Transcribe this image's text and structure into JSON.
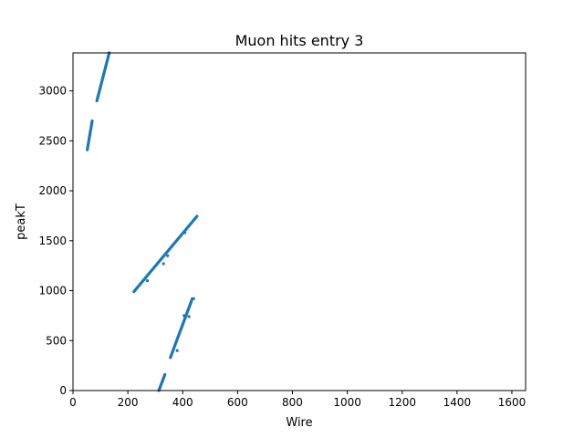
{
  "figure": {
    "title": "Muon hits entry 3"
  },
  "chart_data": {
    "type": "scatter",
    "title": "Muon hits entry 3",
    "xlabel": "Wire",
    "ylabel": "peakT",
    "xlim": [
      0,
      1650
    ],
    "ylim": [
      0,
      3380
    ],
    "x_ticks": [
      0,
      200,
      400,
      600,
      800,
      1000,
      1200,
      1400,
      1600
    ],
    "y_ticks": [
      0,
      500,
      1000,
      1500,
      2000,
      2500,
      3000
    ],
    "x_tick_labels": [
      "0",
      "200",
      "400",
      "600",
      "800",
      "1000",
      "1200",
      "1400",
      "1600"
    ],
    "y_tick_labels": [
      "0",
      "500",
      "1000",
      "1500",
      "2000",
      "2500",
      "3000"
    ],
    "grid": false,
    "legend": "none",
    "marker_color": "#1f77b4",
    "series": [
      {
        "segments": [
          {
            "x": [
              52,
              70
            ],
            "y": [
              2410,
              2700
            ]
          },
          {
            "x": [
              87,
              132
            ],
            "y": [
              2900,
              3380
            ]
          },
          {
            "x": [
              222,
              452
            ],
            "y": [
              990,
              1745
            ]
          },
          {
            "x": [
              313,
              335
            ],
            "y": [
              0,
              160
            ]
          },
          {
            "x": [
              355,
              435
            ],
            "y": [
              330,
              920
            ]
          }
        ],
        "outliers": [
          {
            "x": 62,
            "y": 2560
          },
          {
            "x": 271,
            "y": 1100
          },
          {
            "x": 330,
            "y": 1270
          },
          {
            "x": 345,
            "y": 1350
          },
          {
            "x": 380,
            "y": 400
          },
          {
            "x": 405,
            "y": 750
          },
          {
            "x": 423,
            "y": 740
          },
          {
            "x": 440,
            "y": 920
          },
          {
            "x": 408,
            "y": 1580
          }
        ]
      }
    ]
  }
}
